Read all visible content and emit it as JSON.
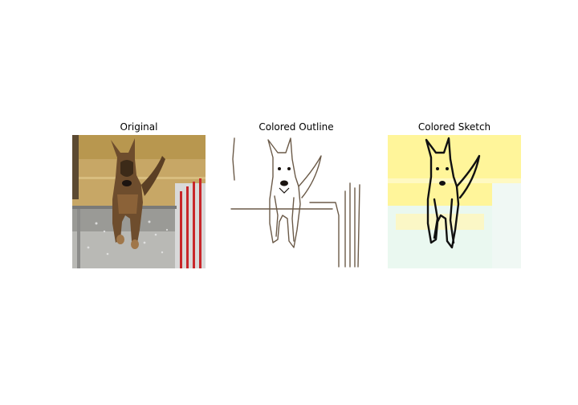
{
  "panels": [
    {
      "title": "Original"
    },
    {
      "title": "Colored Outline"
    },
    {
      "title": "Colored Sketch"
    }
  ],
  "colors": {
    "background": "#ffffff",
    "wall_tan": "#c9a864",
    "dog_fur": "#6e4d2d",
    "outline_stroke": "#6b5a48",
    "sketch_stroke": "#111111",
    "sketch_yellow": "#fff59a",
    "sketch_mint": "#e8f8ef"
  }
}
